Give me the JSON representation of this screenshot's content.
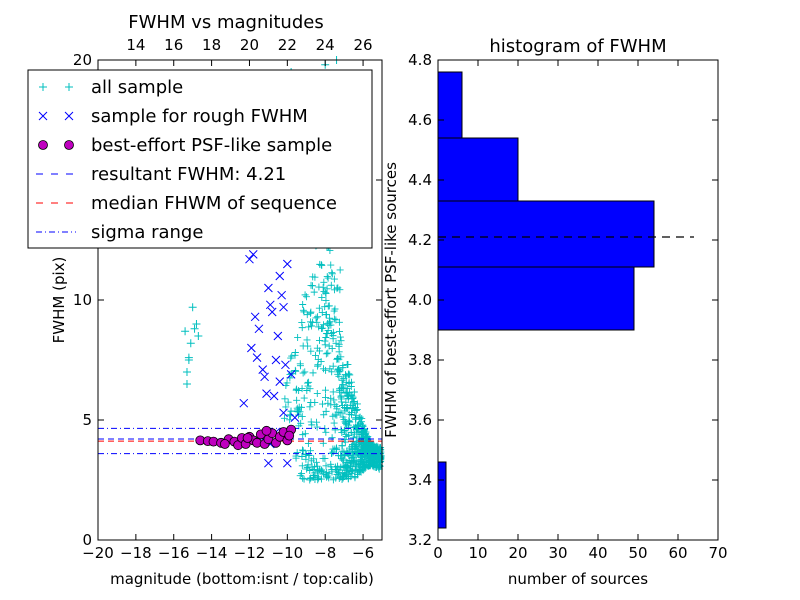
{
  "chart_data": [
    {
      "type": "scatter",
      "title": "FWHM vs magnitudes",
      "xlabel": "magnitude (bottom:isnt / top:calib)",
      "ylabel": "FWHM (pix)",
      "xlim": [
        -20,
        -5
      ],
      "ylim": [
        0,
        20
      ],
      "x_ticks": [
        "−20",
        "−18",
        "−16",
        "−14",
        "−12",
        "−10",
        "−8",
        "−6"
      ],
      "x_tick_values": [
        -20,
        -18,
        -16,
        -14,
        -12,
        -10,
        -8,
        -6
      ],
      "y_ticks": [
        "0",
        "5",
        "10",
        "15",
        "20"
      ],
      "y_tick_values": [
        0,
        5,
        10,
        15,
        20
      ],
      "top_ticks": [
        "14",
        "16",
        "18",
        "20",
        "22",
        "24",
        "26"
      ],
      "top_tick_values": [
        14,
        16,
        18,
        20,
        22,
        24,
        26
      ],
      "top_offset": 32,
      "legend": {
        "placement": "upper-left",
        "entries": [
          {
            "label": "all sample",
            "marker": "plus",
            "color": "#00bfbf"
          },
          {
            "label": "sample for rough FWHM",
            "marker": "x",
            "color": "#0000ff"
          },
          {
            "label": "best-effort PSF-like sample",
            "marker": "circle",
            "color": "#bf00bf"
          },
          {
            "label": "resultant FWHM: 4.21",
            "marker": "dashed",
            "color": "#0000ff"
          },
          {
            "label": "median FHWM of sequence",
            "marker": "dashed",
            "color": "#ff0000"
          },
          {
            "label": "sigma range",
            "marker": "dashdot",
            "color": "#0000ff"
          }
        ]
      },
      "lines": {
        "resultant_fwhm": 4.21,
        "median_fwhm": 4.12,
        "sigma_low": 3.6,
        "sigma_high": 4.65
      },
      "series": [
        {
          "name": "all sample",
          "color": "#00bfbf",
          "marker": "plus",
          "points": [
            [
              -15.4,
              8.7
            ],
            [
              -15.3,
              7.0
            ],
            [
              -15.3,
              6.5
            ],
            [
              -15.2,
              7.6
            ],
            [
              -15.1,
              8.2
            ],
            [
              -15.0,
              9.7
            ],
            [
              -14.9,
              8.8
            ],
            [
              -14.8,
              9.0
            ],
            [
              -14.7,
              8.5
            ],
            [
              -15.2,
              7.5
            ],
            [
              -10.2,
              17.5
            ],
            [
              -11.5,
              16.5
            ],
            [
              -10.8,
              15.0
            ],
            [
              -9.8,
              19.5
            ],
            [
              -8.0,
              19.8
            ],
            [
              -7.4,
              20.0
            ],
            [
              -7.8,
              18.5
            ],
            [
              -8.3,
              17.0
            ],
            [
              -8.9,
              16.2
            ],
            [
              -9.2,
              14.5
            ]
          ]
        },
        {
          "name": "sample for rough FWHM",
          "color": "#0000ff",
          "marker": "x",
          "points": [
            [
              -12.3,
              5.7
            ],
            [
              -11.7,
              9.3
            ],
            [
              -11.5,
              8.8
            ],
            [
              -11.3,
              7.1
            ],
            [
              -11.2,
              6.8
            ],
            [
              -11.1,
              6.1
            ],
            [
              -11.0,
              3.2
            ],
            [
              -10.9,
              9.8
            ],
            [
              -10.8,
              9.5
            ],
            [
              -10.6,
              7.5
            ],
            [
              -10.6,
              4.5
            ],
            [
              -10.5,
              8.5
            ],
            [
              -10.4,
              6.6
            ],
            [
              -10.2,
              9.7
            ],
            [
              -10.2,
              5.3
            ],
            [
              -10.1,
              7.3
            ],
            [
              -10.0,
              11.5
            ],
            [
              -10.0,
              3.2
            ],
            [
              -11.9,
              8.0
            ],
            [
              -11.6,
              7.6
            ],
            [
              -10.7,
              6.0
            ],
            [
              -10.9,
              4.0
            ],
            [
              -10.4,
              11.0
            ],
            [
              -11.0,
              10.5
            ],
            [
              -12.0,
              11.7
            ],
            [
              -9.9,
              12.5
            ],
            [
              -9.8,
              6.9
            ],
            [
              -9.6,
              5.1
            ],
            [
              -11.8,
              11.9
            ],
            [
              -10.3,
              10.2
            ]
          ]
        },
        {
          "name": "best-effort PSF-like sample",
          "color": "#bf00bf",
          "marker": "circle",
          "points": [
            [
              -14.6,
              4.15
            ],
            [
              -14.2,
              4.12
            ],
            [
              -13.9,
              4.1
            ],
            [
              -13.5,
              4.05
            ],
            [
              -13.1,
              4.2
            ],
            [
              -12.8,
              4.1
            ],
            [
              -12.6,
              3.95
            ],
            [
              -12.4,
              4.25
            ],
            [
              -12.2,
              4.0
            ],
            [
              -12.0,
              4.3
            ],
            [
              -11.8,
              4.15
            ],
            [
              -11.6,
              4.05
            ],
            [
              -11.4,
              4.4
            ],
            [
              -11.2,
              4.0
            ],
            [
              -11.0,
              4.2
            ],
            [
              -10.8,
              4.45
            ],
            [
              -10.6,
              4.05
            ],
            [
              -10.4,
              4.3
            ],
            [
              -10.2,
              4.5
            ],
            [
              -10.0,
              4.15
            ],
            [
              -9.8,
              4.6
            ],
            [
              -9.9,
              4.35
            ],
            [
              -11.1,
              4.55
            ],
            [
              -12.1,
              4.25
            ],
            [
              -13.3,
              4.0
            ]
          ]
        }
      ]
    },
    {
      "type": "bar",
      "orientation": "horizontal",
      "title": "histogram of FWHM",
      "xlabel": "number of sources",
      "ylabel": "FWHM of best-effort PSF-like sources",
      "xlim": [
        0,
        70
      ],
      "ylim": [
        3.2,
        4.8
      ],
      "x_ticks": [
        "0",
        "10",
        "20",
        "30",
        "40",
        "50",
        "60",
        "70"
      ],
      "x_tick_values": [
        0,
        10,
        20,
        30,
        40,
        50,
        60,
        70
      ],
      "y_ticks": [
        "3.2",
        "3.4",
        "3.6",
        "3.8",
        "4.0",
        "4.2",
        "4.4",
        "4.6",
        "4.8"
      ],
      "y_tick_values": [
        3.2,
        3.4,
        3.6,
        3.8,
        4.0,
        4.2,
        4.4,
        4.6,
        4.8
      ],
      "color": "#0000ff",
      "bins": [
        {
          "from": 3.24,
          "to": 3.46,
          "count": 2
        },
        {
          "from": 3.9,
          "to": 4.11,
          "count": 49
        },
        {
          "from": 4.11,
          "to": 4.33,
          "count": 54
        },
        {
          "from": 4.33,
          "to": 4.54,
          "count": 20
        },
        {
          "from": 4.54,
          "to": 4.76,
          "count": 6
        }
      ],
      "reference_line": {
        "value": 4.21,
        "from": 0,
        "to": 64
      }
    }
  ]
}
